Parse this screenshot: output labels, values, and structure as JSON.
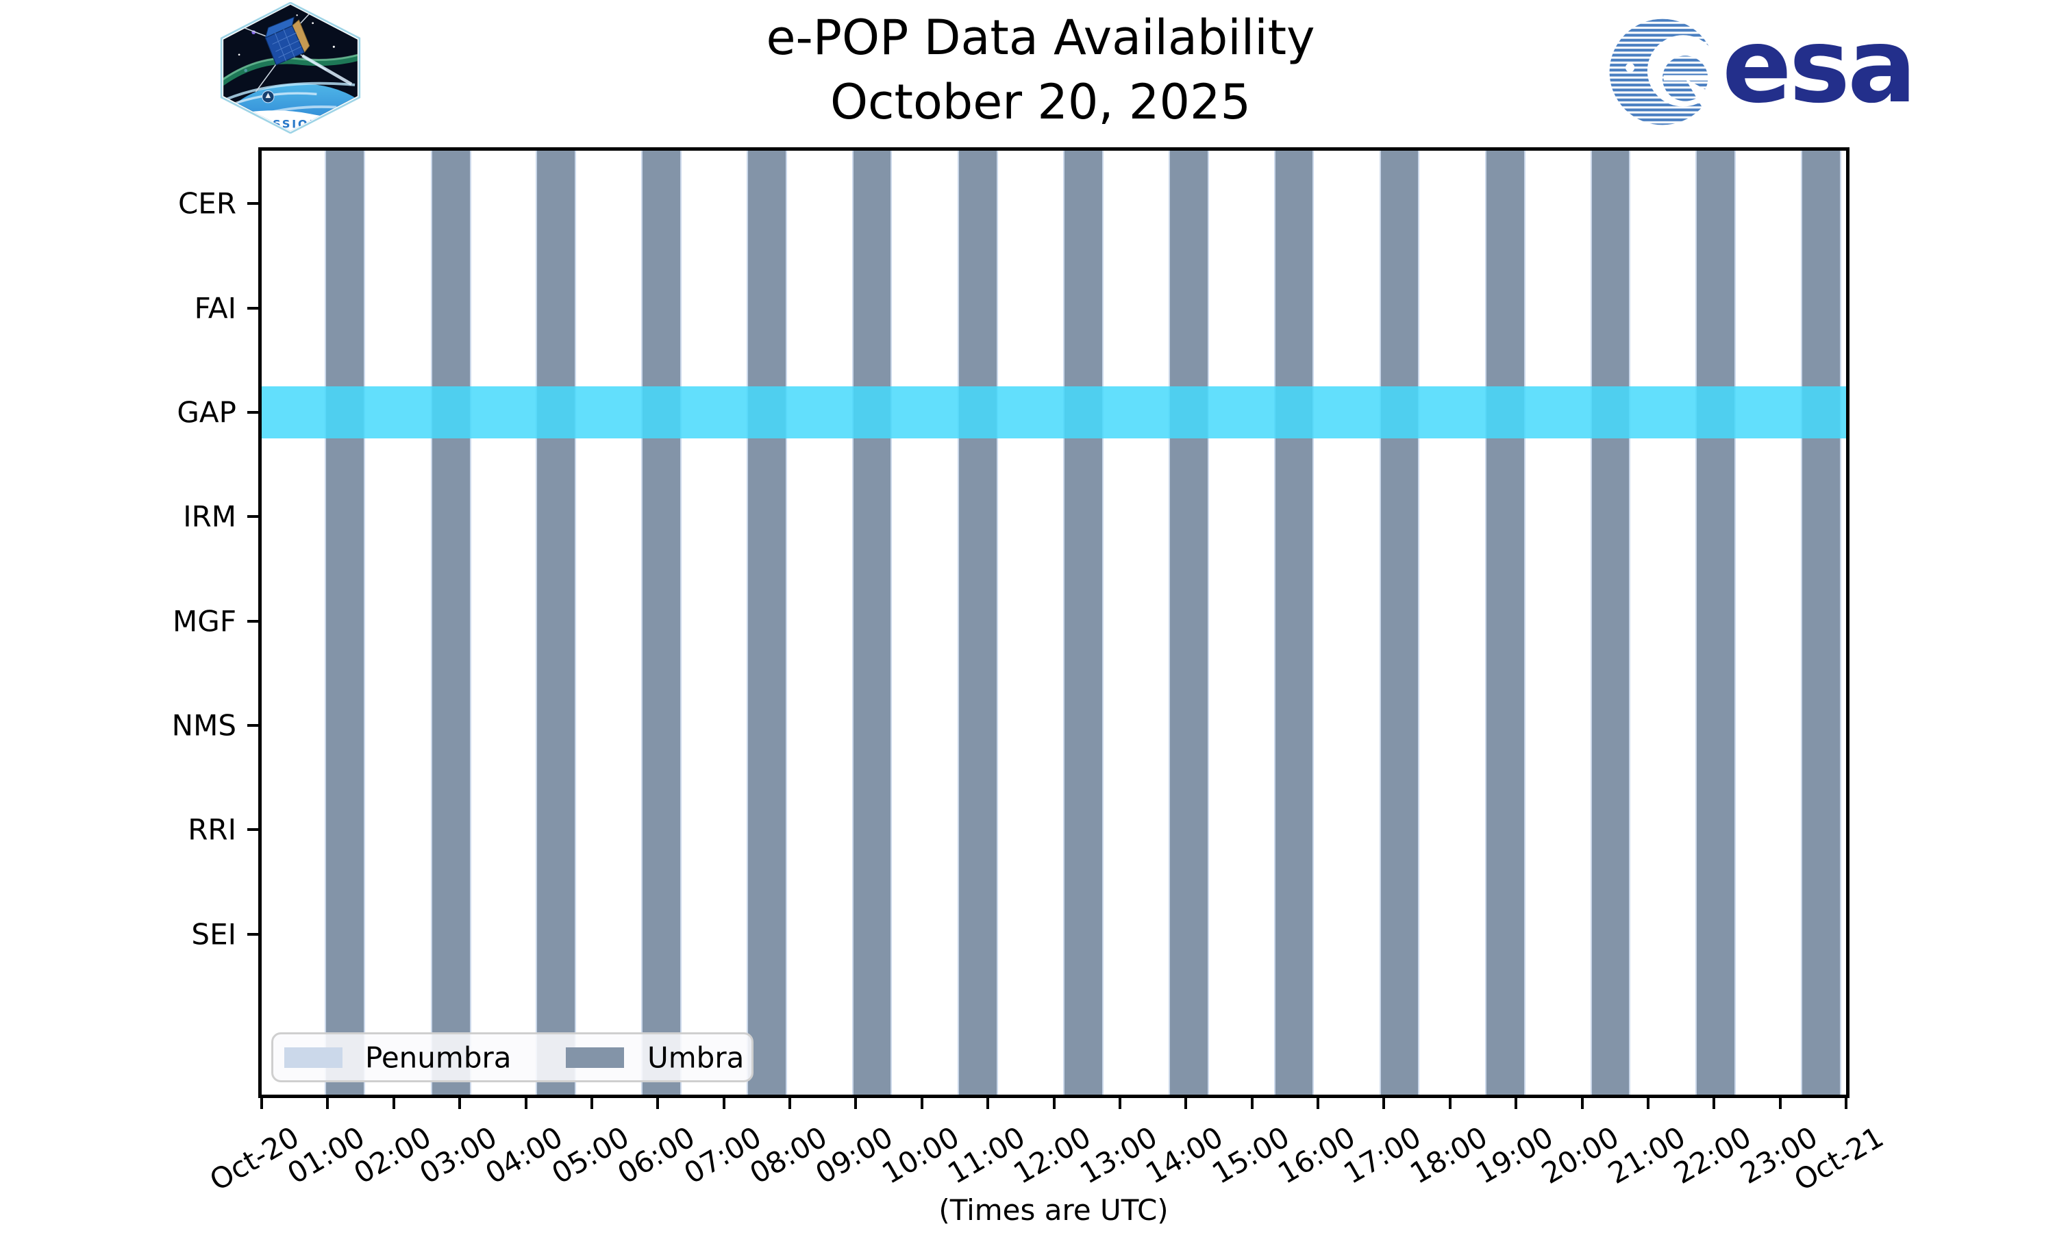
{
  "header": {
    "title_line1": "e-POP Data Availability",
    "title_line2": "October 20, 2025",
    "cassiope_patch_label": "CASSIOPE",
    "esa_wordmark": "esa"
  },
  "chart_data": {
    "type": "timeline-availability",
    "title": "e-POP Data Availability",
    "subtitle": "October 20, 2025",
    "xlabel": "(Times are UTC)",
    "x_axis": {
      "range_hours": [
        0,
        24
      ],
      "tick_labels": [
        "Oct-20",
        "01:00",
        "02:00",
        "03:00",
        "04:00",
        "05:00",
        "06:00",
        "07:00",
        "08:00",
        "09:00",
        "10:00",
        "11:00",
        "12:00",
        "13:00",
        "14:00",
        "15:00",
        "16:00",
        "17:00",
        "18:00",
        "19:00",
        "20:00",
        "21:00",
        "22:00",
        "23:00",
        "Oct-21"
      ]
    },
    "instruments": [
      "CER",
      "FAI",
      "GAP",
      "IRM",
      "MGF",
      "NMS",
      "RRI",
      "SEI"
    ],
    "availability": [
      {
        "instrument": "GAP",
        "start_hour": 0.0,
        "end_hour": 24.0
      }
    ],
    "umbra_intervals_hours": [
      [
        0.98,
        1.55
      ],
      [
        2.58,
        3.15
      ],
      [
        4.17,
        4.74
      ],
      [
        5.77,
        6.34
      ],
      [
        7.37,
        7.94
      ],
      [
        8.97,
        9.53
      ],
      [
        10.56,
        11.13
      ],
      [
        12.16,
        12.73
      ],
      [
        13.76,
        14.33
      ],
      [
        15.36,
        15.92
      ],
      [
        16.95,
        17.52
      ],
      [
        18.55,
        19.12
      ],
      [
        20.15,
        20.71
      ],
      [
        21.74,
        22.31
      ],
      [
        23.34,
        23.91
      ]
    ],
    "legend": [
      {
        "label": "Penumbra",
        "color": "#CBD8EA"
      },
      {
        "label": "Umbra",
        "color": "#8394A8"
      }
    ],
    "colors": {
      "umbra": "#8394A8",
      "penumbra": "#CBD8EA",
      "availability_rgb": [
        70,
        217,
        251
      ],
      "availability_alpha": 0.85,
      "esa_blue": "#232F8B",
      "esa_stripe_blue": "#4A7FC1",
      "axis": "#000000"
    },
    "grid": false,
    "legend_position": "lower-left"
  }
}
